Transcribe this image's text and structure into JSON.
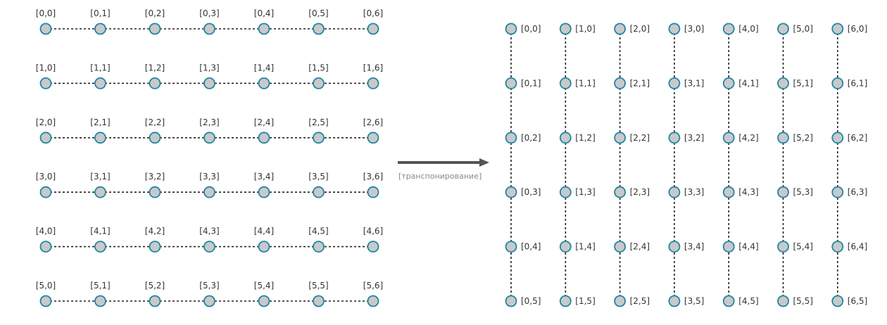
{
  "colors": {
    "node_fill": "#c8c9cb",
    "node_stroke": "#1f86a0",
    "dash_line": "#222222",
    "label": "#333333",
    "arrow": "#555555",
    "caption": "#888888"
  },
  "left_matrix": {
    "rows": [
      [
        "[0,0]",
        "[0,1]",
        "[0,2]",
        "[0,3]",
        "[0,4]",
        "[0,5]",
        "[0,6]"
      ],
      [
        "[1,0]",
        "[1,1]",
        "[1,2]",
        "[1,3]",
        "[1,4]",
        "[1,5]",
        "[1,6]"
      ],
      [
        "[2,0]",
        "[2,1]",
        "[2,2]",
        "[2,3]",
        "[2,4]",
        "[2,5]",
        "[2,6]"
      ],
      [
        "[3,0]",
        "[3,1]",
        "[3,2]",
        "[3,3]",
        "[3,4]",
        "[3,5]",
        "[3,6]"
      ],
      [
        "[4,0]",
        "[4,1]",
        "[4,2]",
        "[4,3]",
        "[4,4]",
        "[4,5]",
        "[4,6]"
      ],
      [
        "[5,0]",
        "[5,1]",
        "[5,2]",
        "[5,3]",
        "[5,4]",
        "[5,5]",
        "[5,6]"
      ]
    ]
  },
  "arrow": {
    "caption": "[транспонирование]"
  },
  "right_matrix": {
    "columns": [
      [
        "[0,0]",
        "[0,1]",
        "[0,2]",
        "[0,3]",
        "[0,4]",
        "[0,5]"
      ],
      [
        "[1,0]",
        "[1,1]",
        "[1,2]",
        "[1,3]",
        "[1,4]",
        "[1,5]"
      ],
      [
        "[2,0]",
        "[2,1]",
        "[2,2]",
        "[2,3]",
        "[2,4]",
        "[2,5]"
      ],
      [
        "[3,0]",
        "[3,1]",
        "[3,2]",
        "[3,3]",
        "[3,4]",
        "[3,5]"
      ],
      [
        "[4,0]",
        "[4,1]",
        "[4,2]",
        "[4,3]",
        "[4,4]",
        "[4,5]"
      ],
      [
        "[5,0]",
        "[5,1]",
        "[5,2]",
        "[5,3]",
        "[5,4]",
        "[5,5]"
      ],
      [
        "[6,0]",
        "[6,1]",
        "[6,2]",
        "[6,3]",
        "[6,4]",
        "[6,5]"
      ]
    ]
  }
}
